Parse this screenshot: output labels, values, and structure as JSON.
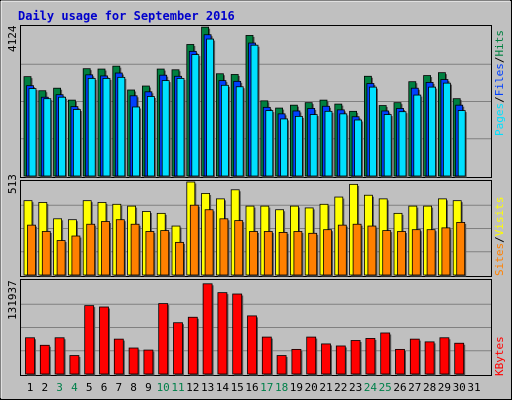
{
  "title": "Daily usage for September 2016",
  "colors": {
    "background": "#c0c0c0",
    "title": "#0000cc",
    "hits": "#008040",
    "files": "#0040ff",
    "pages": "#00e0ff",
    "visits": "#ffff00",
    "sites": "#ff8000",
    "kbytes": "#ff0000",
    "weekend_label": "#00804a",
    "weekday_label": "#000000",
    "gridline": "#808080"
  },
  "chart_data": [
    {
      "type": "bar",
      "name": "hits-files-pages",
      "ymax_label": "4124",
      "ylim": [
        0,
        4124
      ],
      "legend": [
        "Pages",
        "Files",
        "Hits"
      ],
      "categories": [
        "1",
        "2",
        "3",
        "4",
        "5",
        "6",
        "7",
        "8",
        "9",
        "10",
        "11",
        "12",
        "13",
        "14",
        "15",
        "16",
        "17",
        "18",
        "19",
        "20",
        "21",
        "22",
        "23",
        "24",
        "25",
        "26",
        "27",
        "28",
        "29",
        "30",
        "31"
      ],
      "series": [
        {
          "name": "Hits",
          "values": [
            2750,
            2360,
            2430,
            2100,
            2970,
            2960,
            3040,
            2380,
            2490,
            2960,
            2940,
            3640,
            4120,
            2830,
            2810,
            3890,
            2080,
            1880,
            1960,
            2030,
            2100,
            1990,
            1790,
            2760,
            1950,
            2030,
            2610,
            2780,
            2860,
            2140,
            0
          ]
        },
        {
          "name": "Files",
          "values": [
            2500,
            2180,
            2250,
            1920,
            2800,
            2770,
            2850,
            2220,
            2330,
            2790,
            2760,
            3450,
            3910,
            2640,
            2620,
            3680,
            1900,
            1720,
            1800,
            1870,
            1930,
            1830,
            1640,
            2560,
            1800,
            1870,
            2430,
            2590,
            2670,
            1960,
            0
          ]
        },
        {
          "name": "Pages",
          "values": [
            2420,
            2140,
            2180,
            1840,
            2700,
            2700,
            2730,
            1910,
            2200,
            2640,
            2700,
            3360,
            3790,
            2510,
            2470,
            3620,
            1810,
            1580,
            1650,
            1700,
            1790,
            1720,
            1550,
            2460,
            1700,
            1780,
            2240,
            2460,
            2570,
            1810,
            0
          ]
        }
      ]
    },
    {
      "type": "bar",
      "name": "visits-sites",
      "ymax_label": "513",
      "ylim": [
        0,
        513
      ],
      "legend": [
        "Sites",
        "Visits"
      ],
      "categories": [
        "1",
        "2",
        "3",
        "4",
        "5",
        "6",
        "7",
        "8",
        "9",
        "10",
        "11",
        "12",
        "13",
        "14",
        "15",
        "16",
        "17",
        "18",
        "19",
        "20",
        "21",
        "22",
        "23",
        "24",
        "25",
        "26",
        "27",
        "28",
        "29",
        "30",
        "31"
      ],
      "series": [
        {
          "name": "Visits",
          "values": [
            410,
            400,
            310,
            305,
            410,
            400,
            390,
            380,
            350,
            340,
            270,
            520,
            450,
            420,
            470,
            380,
            380,
            360,
            380,
            370,
            390,
            430,
            500,
            440,
            420,
            340,
            380,
            380,
            420,
            410,
            0
          ]
        },
        {
          "name": "Sites",
          "values": [
            275,
            240,
            190,
            215,
            280,
            295,
            305,
            280,
            240,
            245,
            180,
            385,
            360,
            310,
            300,
            240,
            240,
            235,
            240,
            230,
            250,
            275,
            280,
            270,
            245,
            240,
            250,
            250,
            260,
            290,
            0
          ]
        }
      ]
    },
    {
      "type": "bar",
      "name": "kbytes",
      "ymax_label": "131937",
      "ylim": [
        0,
        131937
      ],
      "legend": [
        "KBytes"
      ],
      "categories": [
        "1",
        "2",
        "3",
        "4",
        "5",
        "6",
        "7",
        "8",
        "9",
        "10",
        "11",
        "12",
        "13",
        "14",
        "15",
        "16",
        "17",
        "18",
        "19",
        "20",
        "21",
        "22",
        "23",
        "24",
        "25",
        "26",
        "27",
        "28",
        "29",
        "30",
        "31"
      ],
      "series": [
        {
          "name": "KBytes",
          "values": [
            53000,
            42000,
            53000,
            27000,
            100000,
            98000,
            51000,
            38000,
            35000,
            103000,
            75000,
            83000,
            131937,
            119000,
            117000,
            85000,
            54000,
            27000,
            36000,
            54000,
            44000,
            41000,
            49000,
            52000,
            60000,
            36000,
            51000,
            47000,
            53000,
            45000,
            0
          ]
        }
      ]
    }
  ],
  "day_labels": [
    {
      "label": "1",
      "weekend": false
    },
    {
      "label": "2",
      "weekend": false
    },
    {
      "label": "3",
      "weekend": true
    },
    {
      "label": "4",
      "weekend": true
    },
    {
      "label": "5",
      "weekend": false
    },
    {
      "label": "6",
      "weekend": false
    },
    {
      "label": "7",
      "weekend": false
    },
    {
      "label": "8",
      "weekend": false
    },
    {
      "label": "9",
      "weekend": false
    },
    {
      "label": "10",
      "weekend": true
    },
    {
      "label": "11",
      "weekend": true
    },
    {
      "label": "12",
      "weekend": false
    },
    {
      "label": "13",
      "weekend": false
    },
    {
      "label": "14",
      "weekend": false
    },
    {
      "label": "15",
      "weekend": false
    },
    {
      "label": "16",
      "weekend": false
    },
    {
      "label": "17",
      "weekend": true
    },
    {
      "label": "18",
      "weekend": true
    },
    {
      "label": "19",
      "weekend": false
    },
    {
      "label": "20",
      "weekend": false
    },
    {
      "label": "21",
      "weekend": false
    },
    {
      "label": "22",
      "weekend": false
    },
    {
      "label": "23",
      "weekend": false
    },
    {
      "label": "24",
      "weekend": true
    },
    {
      "label": "25",
      "weekend": true
    },
    {
      "label": "26",
      "weekend": false
    },
    {
      "label": "27",
      "weekend": false
    },
    {
      "label": "28",
      "weekend": false
    },
    {
      "label": "29",
      "weekend": false
    },
    {
      "label": "30",
      "weekend": false
    },
    {
      "label": "31",
      "weekend": false
    }
  ]
}
